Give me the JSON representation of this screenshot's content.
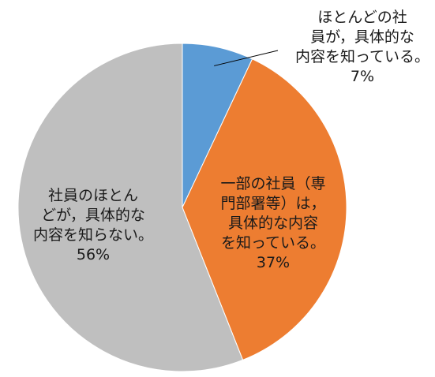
{
  "chart_data": {
    "type": "pie",
    "slices": [
      {
        "label_lines": [
          "ほとんどの社",
          "員が，具体的な",
          "内容を知っている。",
          "7%"
        ],
        "value": 7,
        "color": "#5b9bd5"
      },
      {
        "label_lines": [
          "一部の社員（専",
          "門部署等）は，",
          "具体的な内容",
          "を知っている。",
          "37%"
        ],
        "value": 37,
        "color": "#ed7d31"
      },
      {
        "label_lines": [
          "社員のほとん",
          "どが，具体的な",
          "内容を知らない。",
          "56%"
        ],
        "value": 56,
        "color": "#bfbfbf"
      }
    ]
  }
}
